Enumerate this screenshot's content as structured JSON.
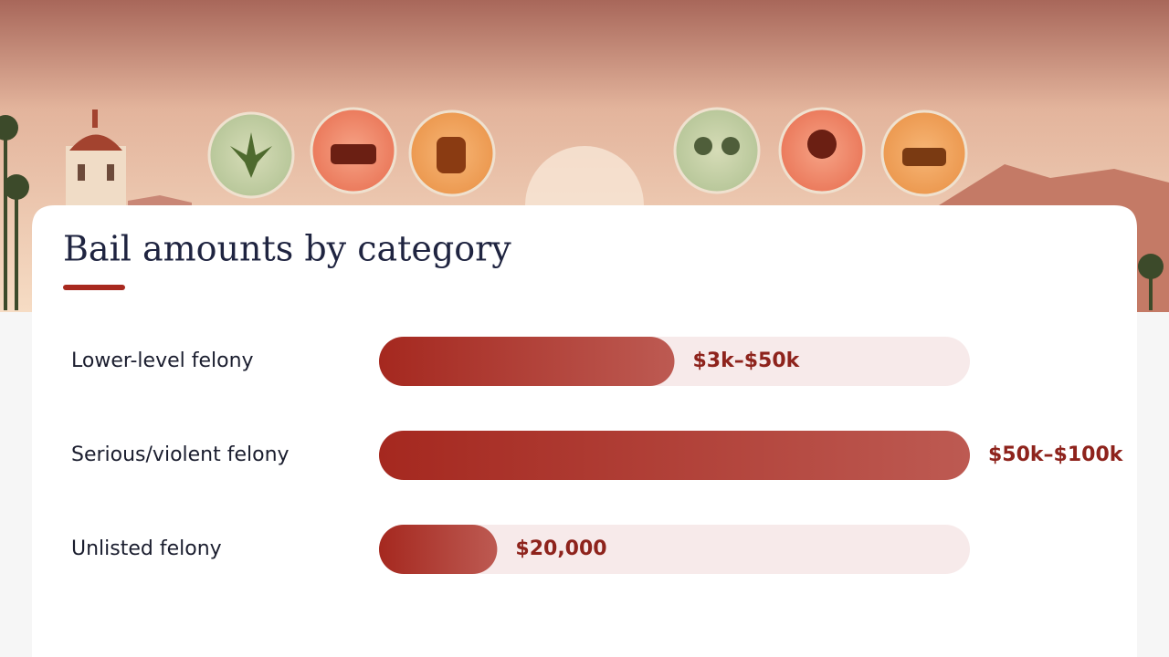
{
  "chart_data": {
    "type": "bar",
    "orientation": "horizontal",
    "title": "Bail amounts by category",
    "categories": [
      "Lower-level felony",
      "Serious/violent felony",
      "Unlisted felony"
    ],
    "values": [
      50000,
      100000,
      20000
    ],
    "value_labels": [
      "$3k–$50k",
      "$50k–$100k",
      "$20,000"
    ],
    "color": "#a8291f",
    "xlim": [
      0,
      100000
    ]
  }
}
